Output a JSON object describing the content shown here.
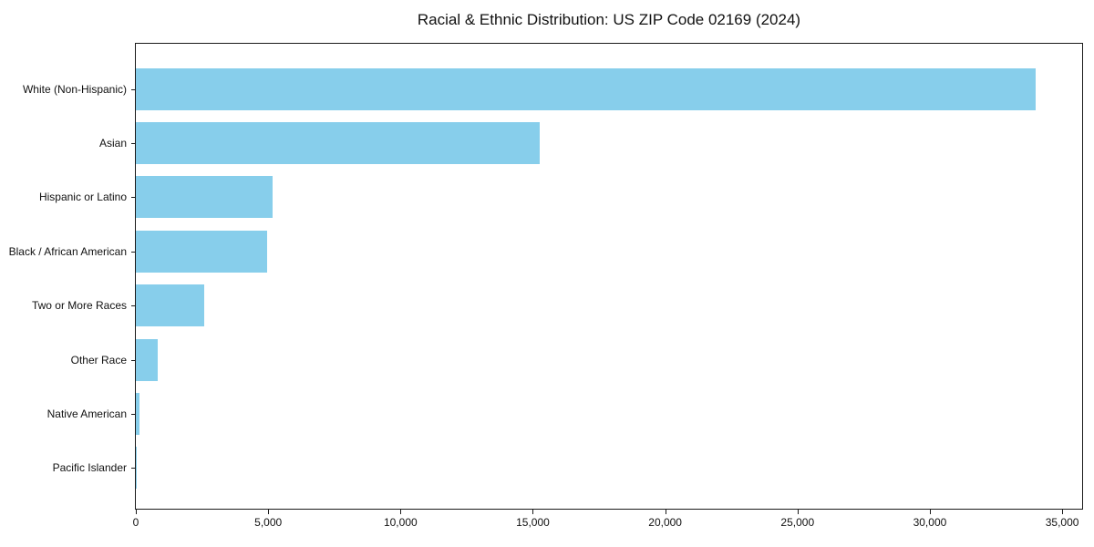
{
  "title": "Racial & Ethnic Distribution: US ZIP Code 02169 (2024)",
  "colors": {
    "bar": "#87CEEB",
    "axis": "#1a1a1a",
    "text": "#111111",
    "background": "#ffffff"
  },
  "chart_data": {
    "type": "bar",
    "orientation": "horizontal",
    "title": "Racial & Ethnic Distribution: US ZIP Code 02169 (2024)",
    "categories": [
      "White (Non-Hispanic)",
      "Asian",
      "Hispanic or Latino",
      "Black / African American",
      "Two or More Races",
      "Other Race",
      "Native American",
      "Pacific Islander"
    ],
    "values": [
      34000,
      15250,
      5150,
      4950,
      2600,
      830,
      150,
      25
    ],
    "xlabel": "",
    "ylabel": "",
    "xlim": [
      0,
      35720
    ],
    "xticks": [
      0,
      5000,
      10000,
      15000,
      20000,
      25000,
      30000,
      35000
    ],
    "xtick_labels": [
      "0",
      "5,000",
      "10,000",
      "15,000",
      "20,000",
      "25,000",
      "30,000",
      "35,000"
    ],
    "bar_color": "#87CEEB",
    "grid": false,
    "legend_position": "none"
  }
}
